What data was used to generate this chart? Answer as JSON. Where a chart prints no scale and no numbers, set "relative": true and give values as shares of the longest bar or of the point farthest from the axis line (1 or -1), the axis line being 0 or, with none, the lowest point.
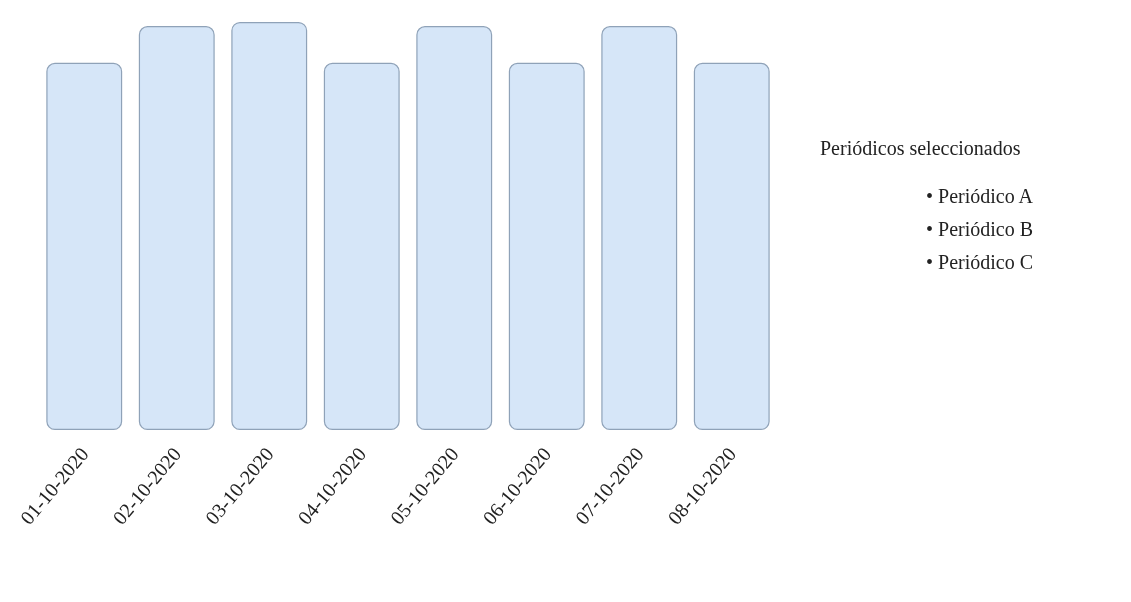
{
  "chart_data": {
    "type": "bar",
    "relative": true,
    "categories": [
      "01-10-2020",
      "02-10-2020",
      "03-10-2020",
      "04-10-2020",
      "05-10-2020",
      "06-10-2020",
      "07-10-2020",
      "08-10-2020"
    ],
    "values": [
      0.9,
      0.99,
      1,
      0.9,
      0.99,
      0.9,
      0.99,
      0.9
    ],
    "color": "#d6e6f8",
    "grid": false,
    "annotations": [
      "Periódicos seleccionados",
      "• Periódico A",
      "• Periódico B",
      "• Periódico C"
    ]
  }
}
